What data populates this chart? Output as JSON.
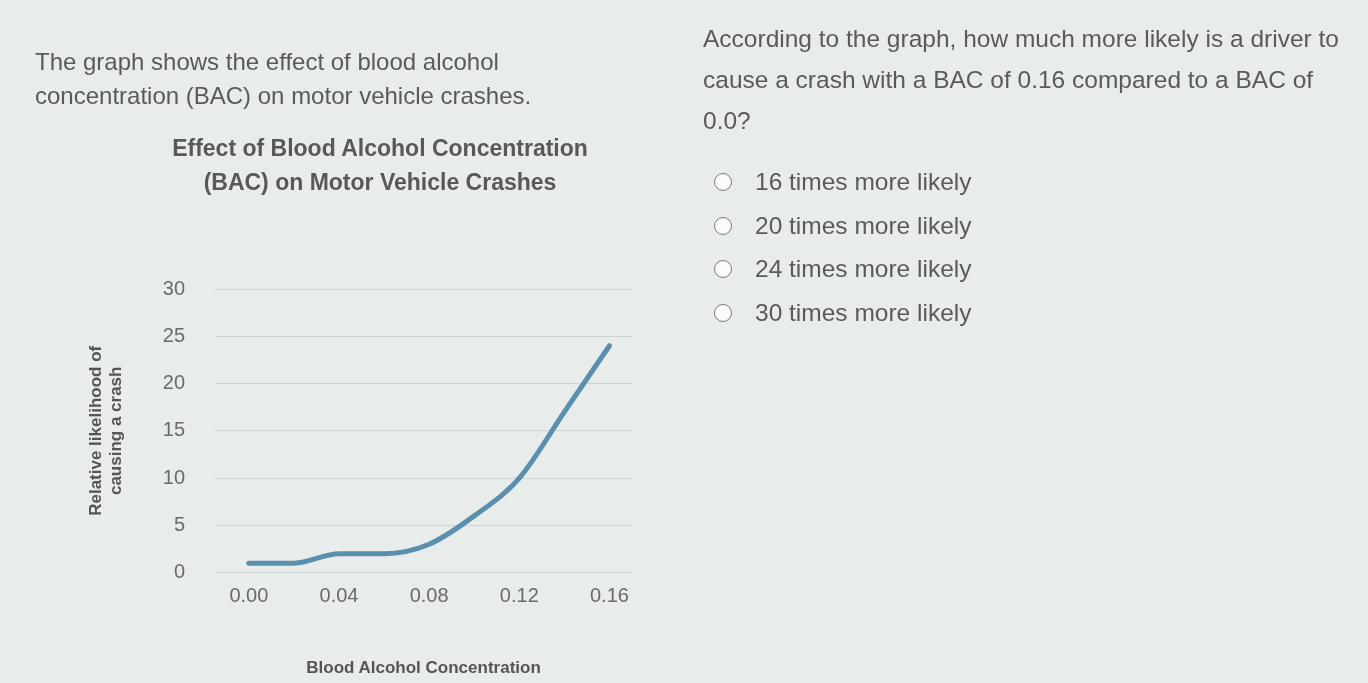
{
  "chart_data": {
    "type": "line",
    "title": "Effect of Blood Alcohol Concentration (BAC) on Motor Vehicle Crashes",
    "xlabel": "Blood Alcohol Concentration",
    "ylabel": "Relative likelihood of causing a crash",
    "x": [
      0,
      0.02,
      0.04,
      0.06,
      0.08,
      0.1,
      0.12,
      0.14,
      0.16
    ],
    "series": [
      {
        "color": "#5a8fae",
        "values": [
          1,
          1,
          2,
          2,
          3,
          6,
          10,
          17,
          24
        ]
      }
    ],
    "xlim": [
      -0.015,
      0.17
    ],
    "xticks": [
      {
        "value": 0,
        "label": "0.00"
      },
      0.04,
      0.08,
      0.12,
      0.16
    ],
    "ylim": [
      0,
      30
    ],
    "yticks": [
      0,
      5,
      10,
      15,
      20,
      25,
      30
    ],
    "grid": "y",
    "marker": "none",
    "annotations": [
      "The graph shows the effect of blood alcohol concentration (BAC) on motor vehicle crashes.",
      "According to the graph, how much more likely is a driver to cause a crash with a BAC of 0.16 compared to a BAC of 0.0?",
      "16 times more likely",
      "20 times more likely",
      "24 times more likely",
      "30 times more likely"
    ]
  }
}
